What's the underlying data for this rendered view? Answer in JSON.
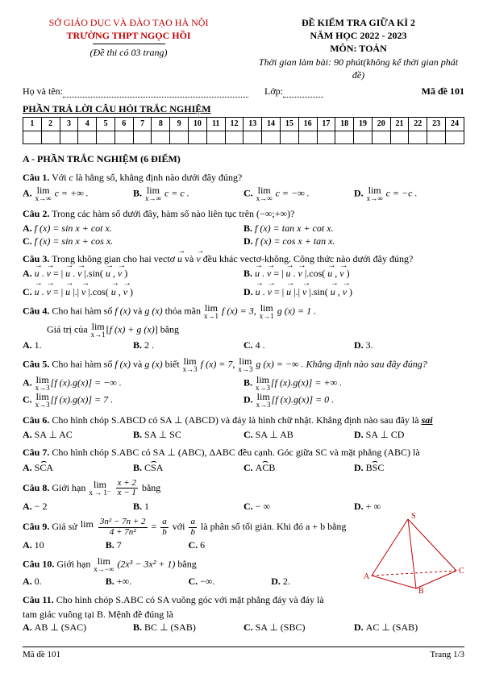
{
  "header": {
    "sogd": "SỞ GIÁO DỤC VÀ ĐÀO TẠO HÀ NỘI",
    "truong": "TRƯỜNG THPT NGỌC HỒI",
    "dethi": "(Đề thi có 03 trang)",
    "title": "ĐỀ KIỂM TRA GIỮA KÌ 2",
    "namhoc": "NĂM HỌC 2022 - 2023",
    "mon": "MÔN: TOÁN",
    "thoigian": "Thời gian làm bài: 90 phút(không kể thời gian phát đề)",
    "hoten_label": "Họ và tên: ",
    "lop_label": "Lớp: ",
    "made_label": "Mã đề 101"
  },
  "answergrid": {
    "title": "PHẦN TRẢ LỜI CÂU HỎI TRẮC NGHIỆM",
    "cells": [
      "1",
      "2",
      "3",
      "4",
      "5",
      "6",
      "7",
      "8",
      "9",
      "10",
      "11",
      "12",
      "13",
      "14",
      "15",
      "16",
      "17",
      "18",
      "19",
      "20",
      "21",
      "22",
      "23",
      "24"
    ]
  },
  "partA": "A - PHẦN TRẮC NGHIỆM (6 ĐIỂM)",
  "q1": {
    "stem_a": "Câu 1.",
    "stem_b": " Với ",
    "stem_c": " là hằng số, khẳng định nào dưới đây đúng?",
    "varc": "c",
    "A": " c = +∞ .",
    "B": " c = c .",
    "C": " c = −∞ .",
    "D": " c = −c ."
  },
  "q2": {
    "stem_a": "Câu 2.",
    "stem_b": " Trong các hàm số dưới đây, hàm số nào liên tục trên (−∞;+∞)?",
    "A": "f (x) = sin x + cot x.",
    "B": "f (x) = tan x + cot x.",
    "C": "f (x) = sin x + cos x.",
    "D": "f (x) = cos x + tan x."
  },
  "q3": {
    "stem_a": "Câu 3.",
    "stem_b": " Trong không gian cho hai vectơ ",
    "stem_c": " và ",
    "stem_d": " đều khác vectơ-không. Công thức nào dưới đây đúng?",
    "u": "u",
    "v": "v",
    "A1": "u",
    "A2": "v",
    "A3": "u",
    "A4": "v",
    "A5": "u",
    "A6": "v",
    "B1": "u",
    "B2": "v",
    "B3": "u",
    "B4": "v",
    "B5": "u",
    "B6": "v",
    "C1": "u",
    "C2": "v",
    "C3": "u",
    "C4": "v",
    "C5": "u",
    "C6": "v",
    "D1": "u",
    "D2": "v",
    "D3": "u",
    "D4": "v",
    "D5": "u",
    "D6": "v"
  },
  "q4": {
    "stem_a": "Câu 4.",
    "stem_b": " Cho hai hàm số ",
    "fx": "f (x)",
    "va": " và ",
    "gx": "g (x)",
    "stem_c": " thỏa mãn ",
    "eq1": " f (x) = 3, ",
    "eq2": " g (x) = 1 .",
    "line2a": "Giá trị của ",
    "line2b": " bằng",
    "inside": "f (x) + g (x)",
    "A": "1.",
    "B": "2 .",
    "C": "4 .",
    "D": "3."
  },
  "q5": {
    "stem_a": "Câu 5.",
    "stem_b": " Cho hai hàm số ",
    "fx": "f (x)",
    "va": " và ",
    "gx": "g (x)",
    "stem_c": " biết ",
    "eq1": " f (x) = 7, ",
    "eq2": " g (x) = −∞ . Khẳng định nào sau đây đúng?",
    "A": "[f (x).g(x)] = −∞ .",
    "B": "[f (x).g(x)] = +∞ .",
    "C": "[f (x).g(x)] = 7 .",
    "D": "[f (x).g(x)] = 0 ."
  },
  "q6": {
    "stem_a": "Câu 6.",
    "stem_b": " Cho hình chóp S.ABCD có SA ⊥ (ABCD) và đáy là hình chữ nhật. Khẳng định nào sau đây là ",
    "sai": "sai",
    "A": "SA ⊥ AC",
    "B": "SA ⊥ SC",
    "C": "SA ⊥ AB",
    "D": "SA ⊥ CD"
  },
  "q7": {
    "stem_a": "Câu 7.",
    "stem_b": " Cho hình chóp S.ABC có SA ⊥ (ABC), ΔABC đều cạnh. Góc giữa SC và mặt phẳng (ABC) là",
    "A": "SCA",
    "B": "CSA",
    "C": "ACB",
    "D": "BSC"
  },
  "q8": {
    "stem_a": "Câu 8.",
    "stem_b": " Giới hạn ",
    "frac_n": "x + 2",
    "frac_d": "x − 1",
    "bang": " bằng",
    "limsub": "x → 1⁻",
    "A": "− 2",
    "B": "1",
    "C": "− ∞",
    "D": "+ ∞"
  },
  "q9": {
    "stem_a": "Câu 9.",
    "stem_b": " Giả sử ",
    "frac_n": "3n² − 7n + 2",
    "frac_d": "4 + 7n²",
    "eq": " = ",
    "ab_n": "a",
    "ab_d": "b",
    "rest": " với ",
    "ab2_n": "a",
    "ab2_d": "b",
    "rest2": " là phân số tối giản. Khi đó a + b bằng",
    "A": "10",
    "B": "7",
    "C": "6"
  },
  "q10": {
    "stem_a": "Câu 10.",
    "stem_b": " Giới hạn ",
    "expr": "(2x³ − 3x² + 1)",
    "bang": " bằng",
    "A": "0.",
    "B": "+∞.",
    "C": "−∞.",
    "D": "2."
  },
  "q11": {
    "stem_a": "Câu 11.",
    "line1": " Cho hình chóp S.ABC có SA vuông góc với mặt phẳng đáy và đáy là",
    "line2": "tam giác vuông tại B. Mệnh đề đúng là",
    "A": "AB ⊥ (SAC)",
    "B": "BC ⊥ (SAB)",
    "C": "SA ⊥ (SBC)",
    "D": "AC ⊥ (SAB)"
  },
  "diagram": {
    "stroke": "#c00000",
    "S": "S",
    "A": "A",
    "B": "B",
    "C": "C"
  },
  "footer": {
    "left": "Mã đề 101",
    "right": "Trang 1/3"
  }
}
